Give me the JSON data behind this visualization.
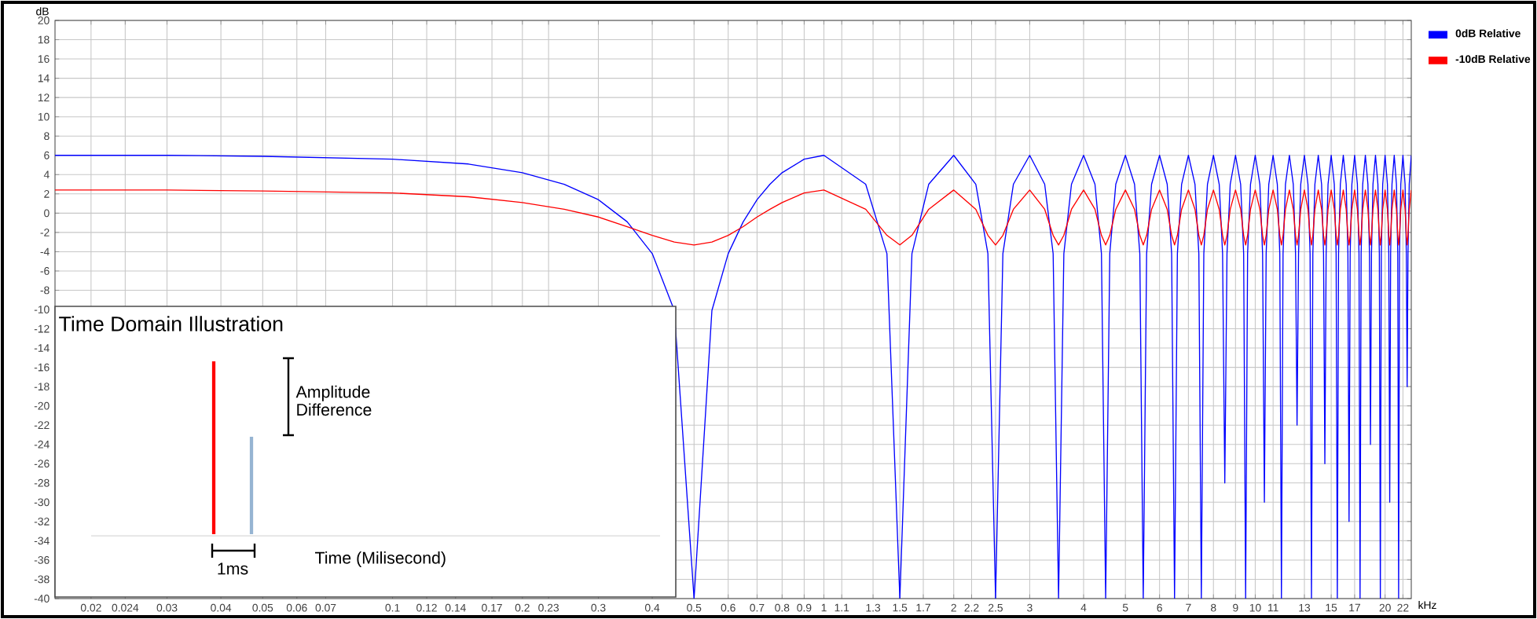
{
  "chart_data": {
    "type": "line",
    "xlabel": "kHz",
    "ylabel": "dB",
    "x": [
      0.0165,
      0.03,
      0.05,
      0.1,
      0.15,
      0.2,
      0.25,
      0.3,
      0.35,
      0.4,
      0.45,
      0.5,
      0.55,
      0.6,
      0.65,
      0.7,
      0.75,
      0.8,
      0.9,
      1,
      1.25,
      1.4,
      1.5,
      1.6,
      1.75,
      2,
      2.25,
      2.4,
      2.5,
      2.6,
      2.75,
      3,
      3.25,
      3.4,
      3.5,
      3.6,
      3.75,
      4,
      4.25,
      4.4,
      4.5,
      4.6,
      4.75,
      5,
      5.25,
      5.4,
      5.5,
      5.6,
      5.75,
      6,
      6.25,
      6.4,
      6.5,
      6.6,
      6.75,
      7,
      7.25,
      7.4,
      7.5,
      7.6,
      7.75,
      8,
      8.25,
      8.4,
      8.5,
      8.6,
      8.75,
      9,
      9.25,
      9.4,
      9.5,
      9.6,
      9.75,
      10,
      10.25,
      10.4,
      10.5,
      10.6,
      10.75,
      11,
      11.25,
      11.4,
      11.5,
      11.6,
      11.75,
      12,
      12.25,
      12.4,
      12.5,
      12.6,
      12.75,
      13,
      13.25,
      13.4,
      13.5,
      13.6,
      13.75,
      14,
      14.25,
      14.4,
      14.5,
      14.6,
      14.75,
      15,
      15.25,
      15.4,
      15.5,
      15.6,
      15.75,
      16,
      16.25,
      16.4,
      16.5,
      16.6,
      16.75,
      17,
      17.25,
      17.4,
      17.5,
      17.6,
      17.75,
      18,
      18.25,
      18.4,
      18.5,
      18.6,
      18.75,
      19,
      19.25,
      19.4,
      19.5,
      19.6,
      19.75,
      20,
      20.25,
      20.4,
      20.5,
      20.6,
      20.75,
      21,
      21.25,
      21.4,
      21.5,
      21.6,
      21.75,
      22,
      22.25,
      22.4,
      22.5,
      22.6,
      22.75,
      23
    ],
    "series": [
      {
        "name": "0dB Relative",
        "color": "#0000ff",
        "values": [
          6,
          6,
          5.9,
          5.6,
          5.1,
          4.2,
          3,
          1.4,
          -0.9,
          -4.2,
          -10.1,
          -40,
          -10.1,
          -4.2,
          -0.9,
          1.4,
          3,
          4.2,
          5.6,
          6,
          3,
          -4.2,
          -40,
          -4.2,
          3,
          6,
          3,
          -4.2,
          -40,
          -4.2,
          3,
          6,
          3,
          -4.2,
          -40,
          -4.2,
          3,
          6,
          3,
          -4.2,
          -40,
          -4.2,
          3,
          6,
          3,
          -4.2,
          -40,
          -4.2,
          3,
          6,
          3,
          -4.2,
          -40,
          -4.2,
          3,
          6,
          3,
          -4.2,
          -40,
          -4.2,
          3,
          6,
          3,
          -4.2,
          -28,
          -4.2,
          3,
          6,
          3,
          -4.2,
          -40,
          -4.2,
          3,
          6,
          3,
          -4.2,
          -30,
          -4.2,
          3,
          6,
          3,
          -4.2,
          -40,
          -4.2,
          3,
          6,
          3,
          -4.2,
          -22,
          -4.2,
          3,
          6,
          3,
          -4.2,
          -40,
          -4.2,
          3,
          6,
          3,
          -4.2,
          -26,
          -4.2,
          3,
          6,
          3,
          -4.2,
          -40,
          -4.2,
          3,
          6,
          3,
          -4.2,
          -32,
          -4.2,
          3,
          6,
          3,
          -4.2,
          -40,
          -4.2,
          3,
          6,
          3,
          -4.2,
          -24,
          -4.2,
          3,
          6,
          3,
          -4.2,
          -40,
          -4.2,
          3,
          6,
          3,
          -4.2,
          -30,
          -4.2,
          3,
          6,
          3,
          -4.2,
          -40,
          -4.2,
          3,
          6,
          3,
          -4.2,
          -18,
          -4.2,
          3,
          6
        ]
      },
      {
        "name": "-10dB Relative",
        "color": "#ff0000",
        "values": [
          2.4,
          2.4,
          2.3,
          2.1,
          1.7,
          1.1,
          0.4,
          -0.4,
          -1.4,
          -2.3,
          -3,
          -3.3,
          -3,
          -2.3,
          -1.4,
          -0.4,
          0.4,
          1.1,
          2.1,
          2.4,
          0.4,
          -2.3,
          -3.3,
          -2.3,
          0.4,
          2.4,
          0.4,
          -2.3,
          -3.3,
          -2.3,
          0.4,
          2.4,
          0.4,
          -2.3,
          -3.3,
          -2.3,
          0.4,
          2.4,
          0.4,
          -2.3,
          -3.3,
          -2.3,
          0.4,
          2.4,
          0.4,
          -2.3,
          -3.3,
          -2.3,
          0.4,
          2.4,
          0.4,
          -2.3,
          -3.3,
          -2.3,
          0.4,
          2.4,
          0.4,
          -2.3,
          -3.3,
          -2.3,
          0.4,
          2.4,
          0.4,
          -2.3,
          -3.3,
          -2.3,
          0.4,
          2.4,
          0.4,
          -2.3,
          -3.3,
          -2.3,
          0.4,
          2.4,
          0.4,
          -2.3,
          -3.3,
          -2.3,
          0.4,
          2.4,
          0.4,
          -2.3,
          -3.3,
          -2.3,
          0.4,
          2.4,
          0.4,
          -2.3,
          -3.3,
          -2.3,
          0.4,
          2.4,
          0.4,
          -2.3,
          -3.3,
          -2.3,
          0.4,
          2.4,
          0.4,
          -2.3,
          -3.3,
          -2.3,
          0.4,
          2.4,
          0.4,
          -2.3,
          -3.3,
          -2.3,
          0.4,
          2.4,
          0.4,
          -2.3,
          -3.3,
          -2.3,
          0.4,
          2.4,
          0.4,
          -2.3,
          -3.3,
          -2.3,
          0.4,
          2.4,
          0.4,
          -2.3,
          -3.3,
          -2.3,
          0.4,
          2.4,
          0.4,
          -2.3,
          -3.3,
          -2.3,
          0.4,
          2.4,
          0.4,
          -2.3,
          -3.3,
          -2.3,
          0.4,
          2.4,
          0.4,
          -2.3,
          -3.3,
          -2.3,
          0.4,
          2.4,
          0.4,
          -2.3,
          -3.3,
          -2.3,
          0.4,
          2.4
        ]
      }
    ],
    "xlim": [
      0.0165,
      23
    ],
    "ylim": [
      -40,
      20
    ],
    "xticks": [
      0.02,
      0.024,
      0.03,
      0.04,
      0.05,
      0.06,
      0.07,
      0.1,
      0.12,
      0.14,
      0.17,
      0.2,
      0.23,
      0.3,
      0.4,
      0.5,
      0.6,
      0.7,
      0.8,
      0.9,
      1,
      1.1,
      1.3,
      1.5,
      1.7,
      2,
      2.2,
      2.5,
      3,
      4,
      5,
      6,
      7,
      8,
      9,
      10,
      11,
      13,
      15,
      17,
      20,
      22
    ],
    "yticks": [
      -40,
      -38,
      -36,
      -34,
      -32,
      -30,
      -28,
      -26,
      -24,
      -22,
      -20,
      -18,
      -16,
      -14,
      -12,
      -10,
      -8,
      -6,
      -4,
      -2,
      0,
      2,
      4,
      6,
      8,
      10,
      12,
      14,
      16,
      18,
      20
    ],
    "log": "x",
    "grid": true,
    "legend": "top right",
    "annotations": [
      "Time Domain Illustration",
      "Amplitude Difference",
      "1ms",
      "Time (Milisecond)"
    ]
  }
}
